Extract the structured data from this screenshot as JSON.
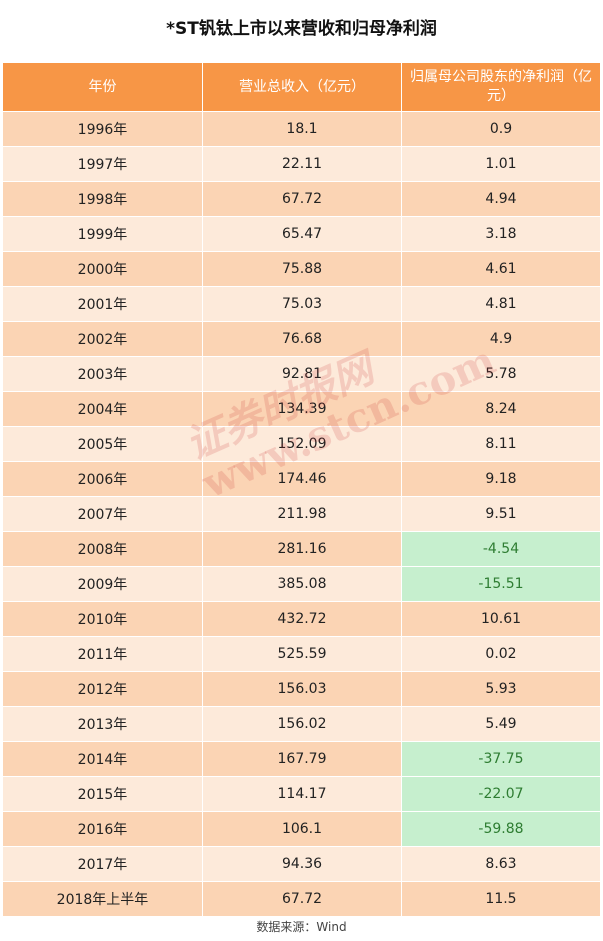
{
  "title": "*ST钒钛上市以来营收和归母净利润",
  "columns": [
    "年份",
    "营业总收入（亿元）",
    "归属母公司股东的净利润（亿元）"
  ],
  "rows": [
    {
      "year": "1996年",
      "revenue": "18.1",
      "profit": "0.9",
      "negative": false
    },
    {
      "year": "1997年",
      "revenue": "22.11",
      "profit": "1.01",
      "negative": false
    },
    {
      "year": "1998年",
      "revenue": "67.72",
      "profit": "4.94",
      "negative": false
    },
    {
      "year": "1999年",
      "revenue": "65.47",
      "profit": "3.18",
      "negative": false
    },
    {
      "year": "2000年",
      "revenue": "75.88",
      "profit": "4.61",
      "negative": false
    },
    {
      "year": "2001年",
      "revenue": "75.03",
      "profit": "4.81",
      "negative": false
    },
    {
      "year": "2002年",
      "revenue": "76.68",
      "profit": "4.9",
      "negative": false
    },
    {
      "year": "2003年",
      "revenue": "92.81",
      "profit": "5.78",
      "negative": false
    },
    {
      "year": "2004年",
      "revenue": "134.39",
      "profit": "8.24",
      "negative": false
    },
    {
      "year": "2005年",
      "revenue": "152.09",
      "profit": "8.11",
      "negative": false
    },
    {
      "year": "2006年",
      "revenue": "174.46",
      "profit": "9.18",
      "negative": false
    },
    {
      "year": "2007年",
      "revenue": "211.98",
      "profit": "9.51",
      "negative": false
    },
    {
      "year": "2008年",
      "revenue": "281.16",
      "profit": "-4.54",
      "negative": true
    },
    {
      "year": "2009年",
      "revenue": "385.08",
      "profit": "-15.51",
      "negative": true
    },
    {
      "year": "2010年",
      "revenue": "432.72",
      "profit": "10.61",
      "negative": false
    },
    {
      "year": "2011年",
      "revenue": "525.59",
      "profit": "0.02",
      "negative": false
    },
    {
      "year": "2012年",
      "revenue": "156.03",
      "profit": "5.93",
      "negative": false
    },
    {
      "year": "2013年",
      "revenue": "156.02",
      "profit": "5.49",
      "negative": false
    },
    {
      "year": "2014年",
      "revenue": "167.79",
      "profit": "-37.75",
      "negative": true
    },
    {
      "year": "2015年",
      "revenue": "114.17",
      "profit": "-22.07",
      "negative": true
    },
    {
      "year": "2016年",
      "revenue": "106.1",
      "profit": "-59.88",
      "negative": true
    },
    {
      "year": "2017年",
      "revenue": "94.36",
      "profit": "8.63",
      "negative": false
    },
    {
      "year": "2018年上半年",
      "revenue": "67.72",
      "profit": "11.5",
      "negative": false
    }
  ],
  "watermark": {
    "line1": "证券时报网",
    "line2": "www.stcn.com"
  },
  "source": "数据来源：Wind",
  "colors": {
    "header": "#f79646",
    "row_odd": "#fbd4b4",
    "row_even": "#fdeada",
    "negative_bg": "#c6efce",
    "negative_text": "#2e7d32"
  },
  "chart_data": {
    "type": "table",
    "title": "*ST钒钛上市以来营收和归母净利润",
    "columns": [
      "年份",
      "营业总收入（亿元）",
      "归属母公司股东的净利润（亿元）"
    ],
    "categories": [
      "1996年",
      "1997年",
      "1998年",
      "1999年",
      "2000年",
      "2001年",
      "2002年",
      "2003年",
      "2004年",
      "2005年",
      "2006年",
      "2007年",
      "2008年",
      "2009年",
      "2010年",
      "2011年",
      "2012年",
      "2013年",
      "2014年",
      "2015年",
      "2016年",
      "2017年",
      "2018年上半年"
    ],
    "series": [
      {
        "name": "营业总收入（亿元）",
        "values": [
          18.1,
          22.11,
          67.72,
          65.47,
          75.88,
          75.03,
          76.68,
          92.81,
          134.39,
          152.09,
          174.46,
          211.98,
          281.16,
          385.08,
          432.72,
          525.59,
          156.03,
          156.02,
          167.79,
          114.17,
          106.1,
          94.36,
          67.72
        ]
      },
      {
        "name": "归属母公司股东的净利润（亿元）",
        "values": [
          0.9,
          1.01,
          4.94,
          3.18,
          4.61,
          4.81,
          4.9,
          5.78,
          8.24,
          8.11,
          9.18,
          9.51,
          -4.54,
          -15.51,
          10.61,
          0.02,
          5.93,
          5.49,
          -37.75,
          -22.07,
          -59.88,
          8.63,
          11.5
        ]
      }
    ]
  }
}
